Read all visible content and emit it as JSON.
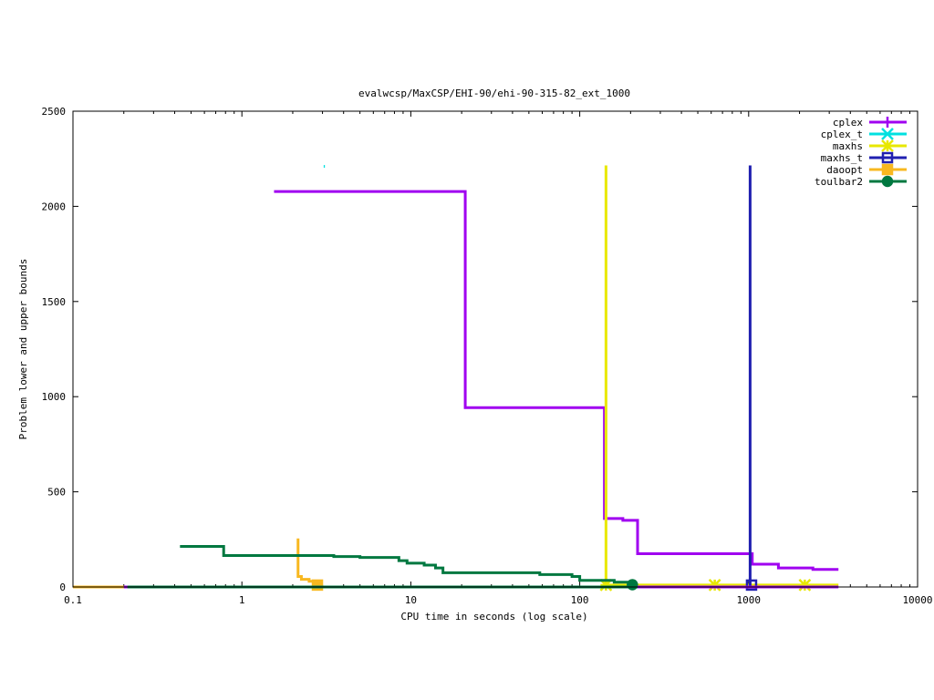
{
  "chart_data": {
    "type": "line",
    "title": "evalwcsp/MaxCSP/EHI-90/ehi-90-315-82_ext_1000",
    "xlabel": "CPU time in seconds (log scale)",
    "ylabel": "Problem lower and upper bounds",
    "xscale": "log",
    "xlim": [
      0.1,
      10000
    ],
    "ylim": [
      0,
      2500
    ],
    "x_ticks": [
      0.1,
      1,
      10,
      100,
      1000,
      10000
    ],
    "x_tick_labels": [
      "0.1",
      "1",
      "10",
      "100",
      "1000",
      "10000"
    ],
    "y_ticks": [
      0,
      500,
      1000,
      1500,
      2000,
      2500
    ],
    "y_tick_labels": [
      "0",
      "500",
      "1000",
      "1500",
      "2000",
      "2500"
    ],
    "grid": false,
    "legend_position": "top-right",
    "series": [
      {
        "name": "cplex",
        "color": "#a000f0",
        "marker": "plus",
        "step": true,
        "points": [
          [
            1.55,
            2078
          ],
          [
            21,
            2078
          ],
          [
            21,
            942
          ],
          [
            140,
            942
          ],
          [
            140,
            360
          ],
          [
            180,
            360
          ],
          [
            180,
            350
          ],
          [
            220,
            350
          ],
          [
            220,
            175
          ],
          [
            1050,
            175
          ],
          [
            1050,
            120
          ],
          [
            1500,
            120
          ],
          [
            1500,
            100
          ],
          [
            2400,
            100
          ],
          [
            2400,
            92
          ],
          [
            3400,
            92
          ]
        ],
        "markers": []
      },
      {
        "name": "cplex_t",
        "color": "#00e0e0",
        "marker": "cross",
        "step": true,
        "points": [
          [
            3.05,
            2210
          ],
          [
            3.1,
            2210
          ]
        ],
        "markers": []
      },
      {
        "name": "maxhs",
        "color": "#e8e800",
        "marker": "star",
        "step": true,
        "points": [
          [
            143,
            2215
          ],
          [
            143,
            0
          ],
          [
            145,
            10
          ],
          [
            3400,
            10
          ]
        ],
        "markers": [
          [
            143,
            10
          ],
          [
            630,
            10
          ],
          [
            2150,
            10
          ]
        ]
      },
      {
        "name": "maxhs_t",
        "color": "#2020b0",
        "marker": "square",
        "step": true,
        "points": [
          [
            1020,
            2215
          ],
          [
            1020,
            0
          ],
          [
            1100,
            0
          ]
        ],
        "markers": [
          [
            1040,
            10
          ]
        ]
      },
      {
        "name": "daoopt",
        "color": "#f8b820",
        "marker": "filled-square",
        "step": true,
        "points": [
          [
            2.15,
            255
          ],
          [
            2.15,
            55
          ],
          [
            2.25,
            55
          ],
          [
            2.25,
            40
          ],
          [
            2.5,
            40
          ],
          [
            2.5,
            30
          ],
          [
            2.9,
            30
          ],
          [
            2.9,
            10
          ]
        ],
        "markers": [
          [
            2.8,
            10
          ]
        ]
      },
      {
        "name": "toulbar2",
        "color": "#007840",
        "marker": "circle",
        "step": true,
        "points": [
          [
            0.43,
            213
          ],
          [
            0.78,
            213
          ],
          [
            0.78,
            165
          ],
          [
            3.5,
            165
          ],
          [
            3.5,
            160
          ],
          [
            5,
            160
          ],
          [
            5,
            155
          ],
          [
            8.5,
            155
          ],
          [
            8.5,
            138
          ],
          [
            9.5,
            138
          ],
          [
            9.5,
            125
          ],
          [
            12,
            125
          ],
          [
            12,
            115
          ],
          [
            14,
            115
          ],
          [
            14,
            100
          ],
          [
            15.5,
            100
          ],
          [
            15.5,
            75
          ],
          [
            58,
            75
          ],
          [
            58,
            65
          ],
          [
            90,
            65
          ],
          [
            90,
            55
          ],
          [
            100,
            55
          ],
          [
            100,
            35
          ],
          [
            160,
            35
          ],
          [
            160,
            25
          ],
          [
            205,
            25
          ],
          [
            205,
            12
          ]
        ],
        "markers": [
          [
            205,
            12
          ]
        ]
      },
      {
        "name": "",
        "color": "#a000f0",
        "marker": "none",
        "step": false,
        "points": [
          [
            0.1,
            0
          ],
          [
            3400,
            0
          ]
        ],
        "markers": []
      },
      {
        "name": "",
        "color": "#007840",
        "marker": "none",
        "step": false,
        "points": [
          [
            0.21,
            0
          ],
          [
            220,
            0
          ]
        ],
        "markers": []
      },
      {
        "name": "",
        "color": "#f8b820",
        "marker": "none",
        "step": false,
        "points": [
          [
            0.1,
            0
          ],
          [
            0.2,
            0
          ]
        ],
        "markers": []
      }
    ]
  }
}
